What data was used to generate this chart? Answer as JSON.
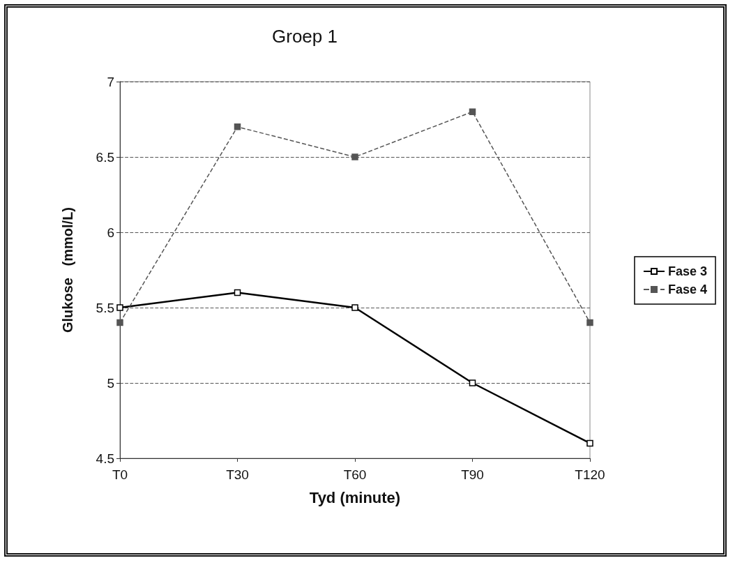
{
  "chart_data": {
    "type": "line",
    "title": "Groep 1",
    "xlabel": "Tyd (minute)",
    "ylabel": "Glukose   (mmol/L)",
    "categories": [
      "T0",
      "T30",
      "T60",
      "T90",
      "T120"
    ],
    "series": [
      {
        "name": "Fase 3",
        "color": "#000000",
        "line_style": "solid",
        "values": [
          5.5,
          5.6,
          5.5,
          5.0,
          4.6
        ]
      },
      {
        "name": "Fase 4",
        "color": "#555555",
        "line_style": "dashed",
        "values": [
          5.4,
          6.7,
          6.5,
          6.8,
          5.4
        ]
      }
    ],
    "ylim": [
      4.5,
      7
    ],
    "yticks": [
      4.5,
      5,
      5.5,
      6,
      6.5,
      7
    ],
    "grid": "y",
    "legend": "right",
    "marker": "square"
  }
}
